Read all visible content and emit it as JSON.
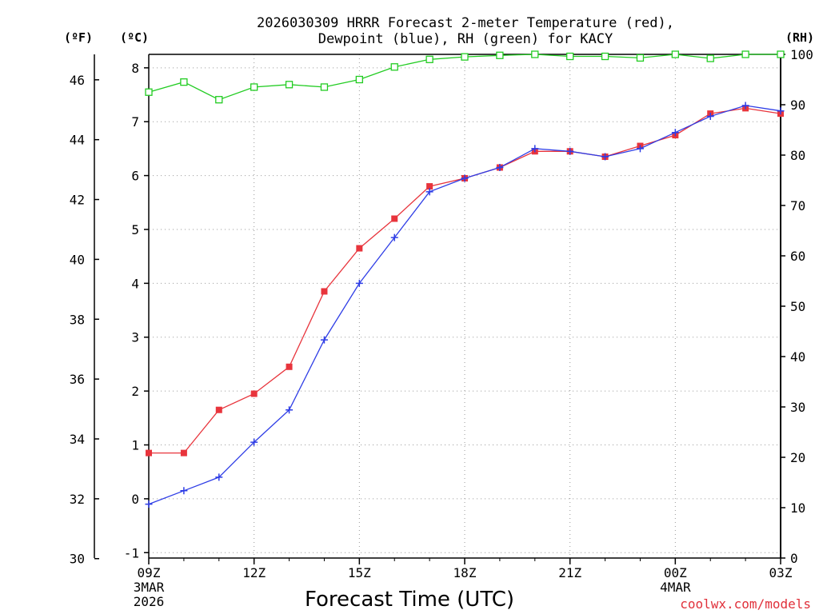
{
  "chart_data": {
    "type": "line",
    "title_line1": "2026030309 HRRR Forecast 2-meter Temperature (red),",
    "title_line2": "Dewpoint (blue), RH (green) for KACY",
    "xlabel": "Forecast Time (UTC)",
    "credit": "coolwx.com/models",
    "unit_left_outer": "(ºF)",
    "unit_left_inner": "(ºC)",
    "unit_right": "(RH)",
    "x": [
      0,
      1,
      2,
      3,
      4,
      5,
      6,
      7,
      8,
      9,
      10,
      11,
      12,
      13,
      14,
      15,
      16,
      17,
      18
    ],
    "xlim": [
      0,
      18
    ],
    "x_ticks": [
      {
        "x": 0,
        "line1": "09Z",
        "line2": "3MAR",
        "line3": "2026"
      },
      {
        "x": 3,
        "line1": "12Z",
        "line2": "",
        "line3": ""
      },
      {
        "x": 6,
        "line1": "15Z",
        "line2": "",
        "line3": ""
      },
      {
        "x": 9,
        "line1": "18Z",
        "line2": "",
        "line3": ""
      },
      {
        "x": 12,
        "line1": "21Z",
        "line2": "",
        "line3": ""
      },
      {
        "x": 15,
        "line1": "00Z",
        "line2": "4MAR",
        "line3": ""
      },
      {
        "x": 18,
        "line1": "03Z",
        "line2": "",
        "line3": ""
      }
    ],
    "y_celsius_lim": [
      -1.1,
      8.25
    ],
    "y_celsius_ticks": [
      "-1",
      "0",
      "1",
      "2",
      "3",
      "4",
      "5",
      "6",
      "7",
      "8"
    ],
    "y_fahrenheit_ticks": [
      "30",
      "32",
      "34",
      "36",
      "38",
      "40",
      "42",
      "44",
      "46"
    ],
    "y_rh_lim": [
      0,
      100
    ],
    "y_rh_ticks": [
      "0",
      "10",
      "20",
      "30",
      "40",
      "50",
      "60",
      "70",
      "80",
      "90",
      "100"
    ],
    "grid": true,
    "series": [
      {
        "name": "Temperature",
        "axis": "celsius",
        "color": "#e8343c",
        "marker": "square-filled",
        "values": [
          0.85,
          0.85,
          1.65,
          1.95,
          2.45,
          3.85,
          4.65,
          5.2,
          5.8,
          5.95,
          6.15,
          6.45,
          6.45,
          6.35,
          6.55,
          6.75,
          7.15,
          7.25,
          7.15
        ]
      },
      {
        "name": "Dewpoint",
        "axis": "celsius",
        "color": "#2e3de6",
        "marker": "plus",
        "values": [
          -0.1,
          0.15,
          0.4,
          1.05,
          1.65,
          2.95,
          4.0,
          4.85,
          5.7,
          5.95,
          6.15,
          6.5,
          6.45,
          6.35,
          6.5,
          6.8,
          7.1,
          7.3,
          7.2
        ]
      },
      {
        "name": "RH",
        "axis": "rh",
        "color": "#22cc22",
        "marker": "square-open",
        "values": [
          92.5,
          94.5,
          91.0,
          93.5,
          94.0,
          93.5,
          95.0,
          97.5,
          99.0,
          99.5,
          99.8,
          100,
          99.6,
          99.6,
          99.3,
          100,
          99.2,
          100,
          100
        ]
      }
    ]
  }
}
